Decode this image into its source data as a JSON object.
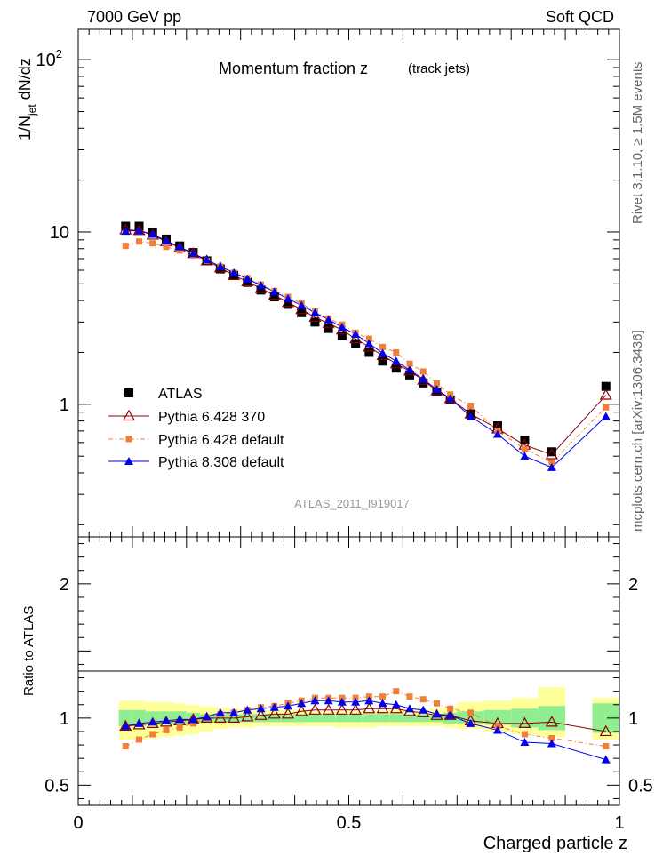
{
  "header": {
    "left": "7000 GeV pp",
    "right": "Soft QCD",
    "title_main": "Momentum fraction z",
    "title_sub": "(track jets)",
    "side_top": "Rivet 3.1.10, ≥ 1.5M events",
    "side_bottom": "mcplots.cern.ch [arXiv:1306.3436]",
    "analysis": "ATLAS_2011_I919017"
  },
  "chart_data": [
    {
      "type": "scatter",
      "panel": "main",
      "ylabel_main": "1/N",
      "ylabel_sub": "jet",
      "ylabel_rest": " dN/dz",
      "yscale": "log",
      "xlim": [
        0,
        1.0
      ],
      "ylim": [
        0.17,
        150
      ],
      "yticks": [
        {
          "value": 1,
          "label": "1"
        },
        {
          "value": 10,
          "label": "10"
        },
        {
          "value": 100,
          "label": "10",
          "sup": "2"
        }
      ],
      "legend_position": "lower-left",
      "x": [
        0.0875,
        0.1125,
        0.1375,
        0.1625,
        0.1875,
        0.2125,
        0.2375,
        0.2625,
        0.2875,
        0.3125,
        0.3375,
        0.3625,
        0.3875,
        0.4125,
        0.4375,
        0.4625,
        0.4875,
        0.5125,
        0.5375,
        0.5625,
        0.5875,
        0.6125,
        0.6375,
        0.6625,
        0.6875,
        0.725,
        0.775,
        0.825,
        0.875,
        0.975
      ],
      "series": [
        {
          "name": "ATLAS",
          "color": "#000000",
          "marker": "square",
          "values": [
            10.8,
            10.8,
            10.0,
            9.1,
            8.3,
            7.6,
            6.8,
            6.1,
            5.6,
            5.1,
            4.6,
            4.2,
            3.8,
            3.4,
            3.0,
            2.75,
            2.5,
            2.25,
            2.0,
            1.78,
            1.62,
            1.48,
            1.33,
            1.18,
            1.06,
            0.88,
            0.75,
            0.62,
            0.53,
            1.27
          ]
        },
        {
          "name": "Pythia 6.428 370",
          "color": "#8b0000",
          "marker": "triangle-open",
          "values": [
            10.3,
            10.2,
            9.6,
            8.8,
            8.1,
            7.5,
            6.8,
            6.2,
            5.6,
            5.15,
            4.7,
            4.3,
            3.9,
            3.55,
            3.2,
            2.95,
            2.7,
            2.4,
            2.15,
            1.92,
            1.72,
            1.56,
            1.38,
            1.2,
            1.08,
            0.88,
            0.72,
            0.58,
            0.51,
            1.13
          ]
        },
        {
          "name": "Pythia 6.428 default",
          "color": "#f07f3a",
          "marker": "square-small",
          "values": [
            8.3,
            8.8,
            8.6,
            8.2,
            7.8,
            7.3,
            6.8,
            6.3,
            5.8,
            5.4,
            4.95,
            4.55,
            4.2,
            3.85,
            3.45,
            3.15,
            2.9,
            2.6,
            2.4,
            2.15,
            2.0,
            1.72,
            1.55,
            1.32,
            1.14,
            0.98,
            0.7,
            0.55,
            0.46,
            0.96
          ]
        },
        {
          "name": "Pythia 8.308 default",
          "color": "#0000ee",
          "marker": "triangle",
          "values": [
            10.1,
            10.2,
            9.7,
            8.9,
            8.2,
            7.5,
            6.9,
            6.3,
            5.8,
            5.35,
            4.9,
            4.5,
            4.1,
            3.75,
            3.4,
            3.1,
            2.8,
            2.55,
            2.25,
            1.98,
            1.78,
            1.58,
            1.4,
            1.22,
            1.08,
            0.85,
            0.67,
            0.5,
            0.43,
            0.85
          ]
        }
      ]
    },
    {
      "type": "scatter",
      "panel": "ratio",
      "ylabel": "Ratio to ATLAS",
      "xlabel": "Charged particle z",
      "xlim": [
        0,
        1.0
      ],
      "ylim": [
        0.35,
        2.35
      ],
      "yticks": [
        {
          "value": 0.5,
          "label": "0.5"
        },
        {
          "value": 1,
          "label": "1"
        },
        {
          "value": 2,
          "label": "2"
        }
      ],
      "xticks": [
        {
          "value": 0,
          "label": "0"
        },
        {
          "value": 0.5,
          "label": "0.5"
        },
        {
          "value": 1,
          "label": "1"
        }
      ],
      "bands": {
        "edges": [
          0.075,
          0.1,
          0.125,
          0.15,
          0.175,
          0.2,
          0.225,
          0.25,
          0.275,
          0.3,
          0.325,
          0.35,
          0.375,
          0.4,
          0.425,
          0.45,
          0.475,
          0.5,
          0.525,
          0.55,
          0.575,
          0.6,
          0.625,
          0.65,
          0.675,
          0.7,
          0.75,
          0.8,
          0.85,
          0.9,
          0.95,
          1.0
        ],
        "inner": [
          [
            0.94,
            1.06
          ],
          [
            0.94,
            1.06
          ],
          [
            0.95,
            1.05
          ],
          [
            0.95,
            1.05
          ],
          [
            0.95,
            1.05
          ],
          [
            0.96,
            1.04
          ],
          [
            0.97,
            1.03
          ],
          [
            0.97,
            1.03
          ],
          [
            0.97,
            1.03
          ],
          [
            0.97,
            1.03
          ],
          [
            0.97,
            1.03
          ],
          [
            0.97,
            1.03
          ],
          [
            0.97,
            1.03
          ],
          [
            0.97,
            1.03
          ],
          [
            0.97,
            1.03
          ],
          [
            0.97,
            1.03
          ],
          [
            0.97,
            1.03
          ],
          [
            0.97,
            1.03
          ],
          [
            0.97,
            1.03
          ],
          [
            0.97,
            1.03
          ],
          [
            0.97,
            1.03
          ],
          [
            0.97,
            1.03
          ],
          [
            0.97,
            1.03
          ],
          [
            0.97,
            1.03
          ],
          [
            0.96,
            1.04
          ],
          [
            0.96,
            1.05
          ],
          [
            0.95,
            1.06
          ],
          [
            0.93,
            1.07
          ],
          [
            0.91,
            1.09
          ],
          [
            null,
            null
          ],
          [
            0.89,
            1.11
          ]
        ],
        "outer": [
          [
            0.84,
            1.13
          ],
          [
            0.84,
            1.13
          ],
          [
            0.85,
            1.12
          ],
          [
            0.86,
            1.12
          ],
          [
            0.87,
            1.11
          ],
          [
            0.88,
            1.1
          ],
          [
            0.9,
            1.09
          ],
          [
            0.92,
            1.08
          ],
          [
            0.93,
            1.07
          ],
          [
            0.93,
            1.06
          ],
          [
            0.94,
            1.06
          ],
          [
            0.94,
            1.06
          ],
          [
            0.94,
            1.06
          ],
          [
            0.94,
            1.06
          ],
          [
            0.94,
            1.05
          ],
          [
            0.94,
            1.05
          ],
          [
            0.93,
            1.05
          ],
          [
            0.93,
            1.05
          ],
          [
            0.93,
            1.05
          ],
          [
            0.94,
            1.05
          ],
          [
            0.94,
            1.06
          ],
          [
            0.94,
            1.06
          ],
          [
            0.94,
            1.06
          ],
          [
            0.94,
            1.07
          ],
          [
            0.93,
            1.08
          ],
          [
            0.92,
            1.12
          ],
          [
            0.9,
            1.13
          ],
          [
            0.88,
            1.15
          ],
          [
            0.86,
            1.23
          ],
          [
            null,
            null
          ],
          [
            0.84,
            1.15
          ]
        ],
        "inner_color": "#90ee90",
        "outer_color": "#ffff99"
      },
      "series": [
        {
          "name": "Pythia 6.428 370",
          "color": "#8b0000",
          "marker": "triangle-open",
          "values": [
            0.94,
            0.95,
            0.96,
            0.97,
            0.98,
            0.99,
            1.0,
            1.0,
            1.0,
            1.01,
            1.02,
            1.03,
            1.03,
            1.05,
            1.06,
            1.06,
            1.06,
            1.06,
            1.07,
            1.07,
            1.07,
            1.05,
            1.04,
            1.02,
            1.02,
            0.98,
            0.96,
            0.96,
            0.97,
            0.9
          ]
        },
        {
          "name": "Pythia 6.428 default",
          "color": "#f07f3a",
          "marker": "square-small",
          "values": [
            0.79,
            0.84,
            0.88,
            0.91,
            0.93,
            0.96,
            1.0,
            1.03,
            1.04,
            1.06,
            1.08,
            1.09,
            1.11,
            1.13,
            1.15,
            1.15,
            1.15,
            1.15,
            1.16,
            1.16,
            1.2,
            1.16,
            1.14,
            1.11,
            1.07,
            1.04,
            0.94,
            0.88,
            0.85,
            0.79
          ]
        },
        {
          "name": "Pythia 8.308 default",
          "color": "#0000ee",
          "marker": "triangle",
          "values": [
            0.94,
            0.96,
            0.97,
            0.98,
            0.99,
            0.99,
            1.01,
            1.04,
            1.04,
            1.06,
            1.07,
            1.08,
            1.09,
            1.11,
            1.13,
            1.13,
            1.12,
            1.12,
            1.13,
            1.11,
            1.1,
            1.07,
            1.06,
            1.03,
            1.02,
            0.96,
            0.91,
            0.82,
            0.81,
            0.69
          ]
        }
      ]
    }
  ]
}
